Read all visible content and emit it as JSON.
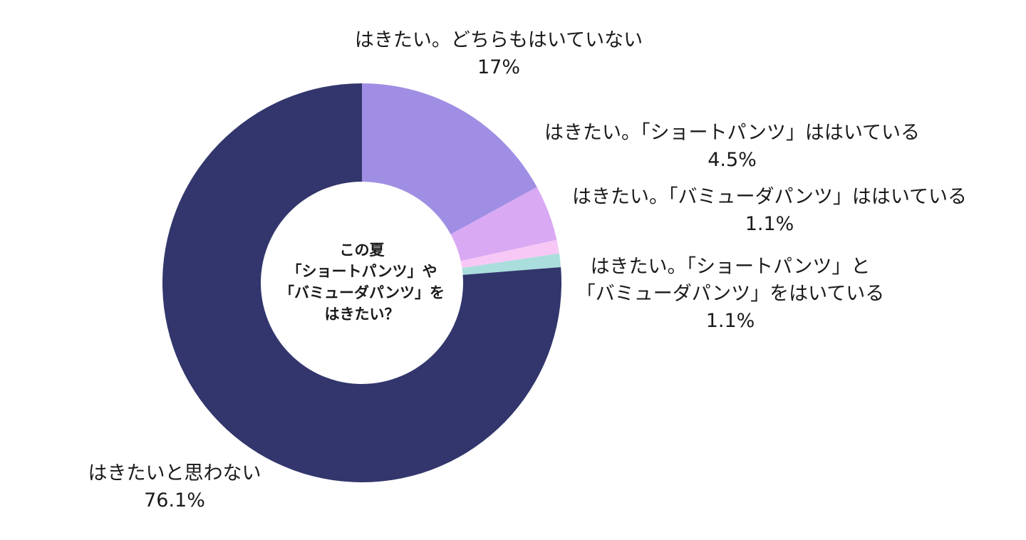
{
  "chart_data": {
    "type": "pie",
    "center_title": [
      "この夏",
      "「ショートパンツ」や",
      "「バミューダパンツ」を",
      "はきたい？"
    ],
    "slices": [
      {
        "label_lines": [
          "はきたい。どちらもはいていない"
        ],
        "percent_label": "17%",
        "value": 17.0,
        "color": "#a08ee4"
      },
      {
        "label_lines": [
          "はきたい。「ショートパンツ」ははいている"
        ],
        "percent_label": "4.5%",
        "value": 4.5,
        "color": "#d9a9f3"
      },
      {
        "label_lines": [
          "はきたい。「バミューダパンツ」ははいている"
        ],
        "percent_label": "1.1%",
        "value": 1.1,
        "color": "#f7c8f6"
      },
      {
        "label_lines": [
          "はきたい。「ショートパンツ」と",
          "「バミューダパンツ」をはいている"
        ],
        "percent_label": "1.1%",
        "value": 1.1,
        "color": "#aadedd"
      },
      {
        "label_lines": [
          "はきたいと思わない"
        ],
        "percent_label": "76.1%",
        "value": 76.1,
        "color": "#32366c"
      }
    ]
  }
}
